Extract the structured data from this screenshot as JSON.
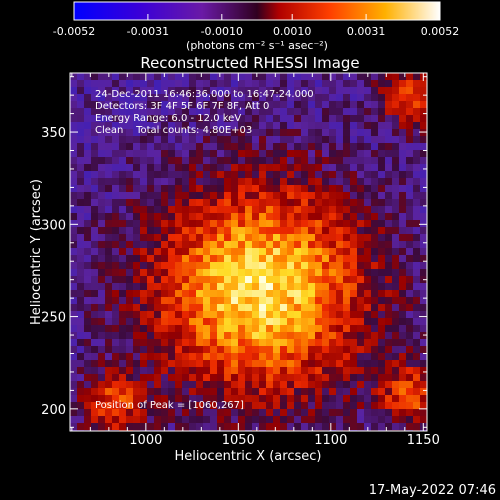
{
  "colorbar": {
    "ticks": [
      "-0.0052",
      "-0.0031",
      "-0.0010",
      "0.0010",
      "0.0031",
      "0.0052"
    ],
    "range": [
      -0.0052,
      0.0052
    ],
    "unit_label": "(photons cm⁻² s⁻¹ asec⁻²)"
  },
  "chart_data": {
    "type": "heatmap",
    "title": "Reconstructed RHESSI Image",
    "xlabel": "Heliocentric X (arcsec)",
    "ylabel": "Heliocentric Y (arcsec)",
    "xlim": [
      959,
      1152
    ],
    "ylim": [
      188,
      382
    ],
    "xticks": [
      1000,
      1050,
      1100,
      1150
    ],
    "yticks": [
      200,
      250,
      300,
      350
    ],
    "colormap": "rainbow blue-purple-red-orange-yellow-white",
    "peak": [
      1060,
      267
    ],
    "annotations": [
      "24-Dec-2011 16:46:36.000 to 16:47:24.000",
      "Detectors: 3F 4F 5F 6F 7F 8F, Att 0",
      "Energy Range: 6.0 - 12.0 keV",
      "Clean    Total counts: 4.80E+03"
    ],
    "peak_label": "Position of Peak = [1060,267]"
  },
  "footer": {
    "timestamp": "17-May-2022 07:46"
  }
}
